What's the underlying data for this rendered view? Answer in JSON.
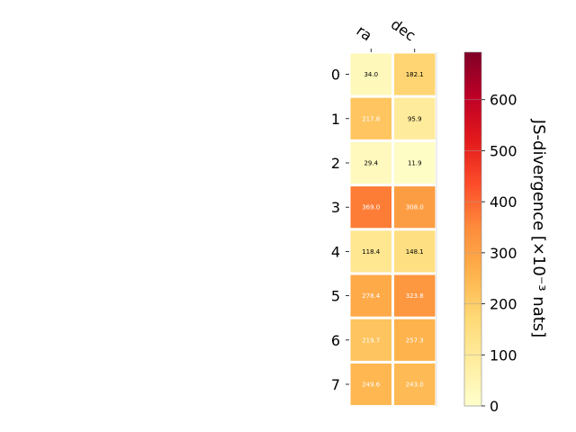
{
  "chart_data": {
    "type": "heatmap",
    "title": "",
    "columns": [
      "ra",
      "dec"
    ],
    "rows": [
      "0",
      "1",
      "2",
      "3",
      "4",
      "5",
      "6",
      "7"
    ],
    "values": [
      [
        34.0,
        182.1
      ],
      [
        217.8,
        95.9
      ],
      [
        29.4,
        11.9
      ],
      [
        369.0,
        308.0
      ],
      [
        118.4,
        148.1
      ],
      [
        278.4,
        323.8
      ],
      [
        219.7,
        257.3
      ],
      [
        249.6,
        243.0
      ]
    ],
    "cell_labels": [
      [
        "34.0",
        "182.1"
      ],
      [
        "217.8",
        "95.9"
      ],
      [
        "29.4",
        "11.9"
      ],
      [
        "369.0",
        "308.0"
      ],
      [
        "118.4",
        "148.1"
      ],
      [
        "278.4",
        "323.8"
      ],
      [
        "219.7",
        "257.3"
      ],
      [
        "249.6",
        "243.0"
      ]
    ],
    "colormap": "YlOrRd",
    "colorbar": {
      "label": "JS-divergence [×10⁻³ nats]",
      "range": [
        0,
        693
      ],
      "ticks": [
        0,
        100,
        200,
        300,
        400,
        500,
        600
      ],
      "tick_labels": [
        "0",
        "100",
        "200",
        "300",
        "400",
        "500",
        "600"
      ]
    },
    "grid": false
  }
}
